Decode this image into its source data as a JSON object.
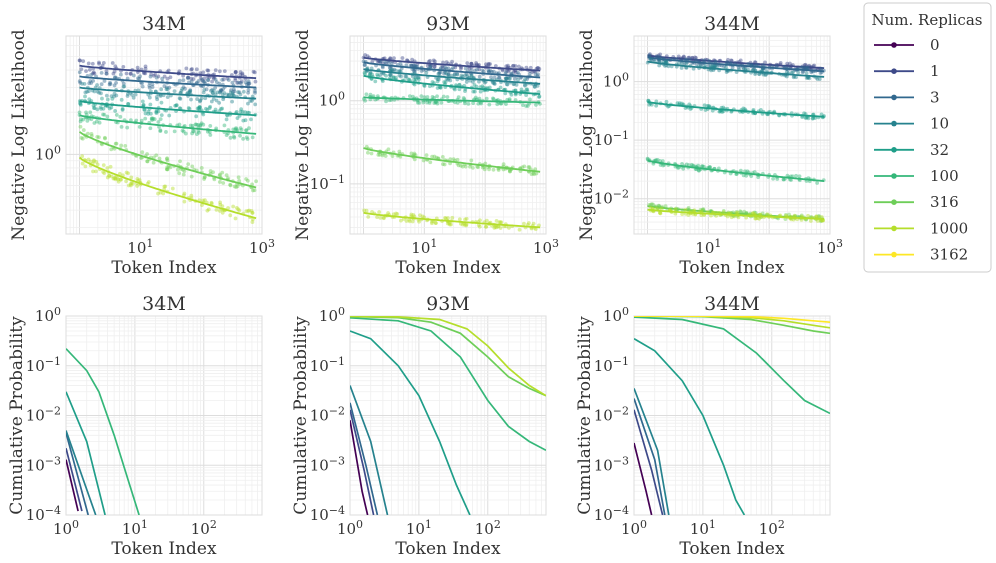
{
  "legend": {
    "title": "Num. Replicas",
    "items": [
      {
        "label": "0",
        "color": "#440154"
      },
      {
        "label": "1",
        "color": "#3e4a89"
      },
      {
        "label": "3",
        "color": "#31688e"
      },
      {
        "label": "10",
        "color": "#26828e"
      },
      {
        "label": "32",
        "color": "#1f9e89"
      },
      {
        "label": "100",
        "color": "#35b779"
      },
      {
        "label": "316",
        "color": "#6ece58"
      },
      {
        "label": "1000",
        "color": "#b5de2b"
      },
      {
        "label": "3162",
        "color": "#fde725"
      }
    ]
  },
  "chart_data": [
    {
      "type": "scatter",
      "title": "34M",
      "xlabel": "Token Index",
      "ylabel": "Negative Log Likelihood",
      "xscale": "log",
      "yscale": "log",
      "xlim": [
        0.6,
        1000
      ],
      "ylim": [
        0.27,
        7
      ],
      "xticks": [
        {
          "v": 10,
          "label": "10^1"
        },
        {
          "v": 1000,
          "label": "10^3"
        }
      ],
      "yticks": [
        {
          "v": 1,
          "label": "10^0"
        }
      ],
      "grid": true,
      "series": [
        {
          "name": "1",
          "color": "#3e4a89",
          "start": 4.3,
          "end": 3.5
        },
        {
          "name": "3",
          "color": "#31688e",
          "start": 3.6,
          "end": 3.0
        },
        {
          "name": "10",
          "color": "#26828e",
          "start": 3.0,
          "end": 2.5
        },
        {
          "name": "32",
          "color": "#1f9e89",
          "start": 2.4,
          "end": 1.9
        },
        {
          "name": "100",
          "color": "#35b779",
          "start": 1.9,
          "end": 1.4
        },
        {
          "name": "316",
          "color": "#6ece58",
          "start": 1.45,
          "end": 0.58
        },
        {
          "name": "1000",
          "color": "#b5de2b",
          "start": 0.95,
          "end": 0.35
        }
      ]
    },
    {
      "type": "scatter",
      "title": "93M",
      "xlabel": "Token Index",
      "ylabel": "Negative Log Likelihood",
      "xscale": "log",
      "yscale": "log",
      "xlim": [
        0.6,
        1000
      ],
      "ylim": [
        0.025,
        6
      ],
      "xticks": [
        {
          "v": 10,
          "label": "10^1"
        },
        {
          "v": 1000,
          "label": "10^3"
        }
      ],
      "yticks": [
        {
          "v": 1,
          "label": "10^0"
        },
        {
          "v": 0.1,
          "label": "10^-1"
        }
      ],
      "grid": true,
      "series": [
        {
          "name": "1",
          "color": "#3e4a89",
          "start": 3.3,
          "end": 2.3
        },
        {
          "name": "3",
          "color": "#31688e",
          "start": 2.9,
          "end": 1.9
        },
        {
          "name": "10",
          "color": "#26828e",
          "start": 2.4,
          "end": 1.6
        },
        {
          "name": "32",
          "color": "#1f9e89",
          "start": 2.0,
          "end": 1.2
        },
        {
          "name": "100",
          "color": "#35b779",
          "start": 1.1,
          "end": 0.95
        },
        {
          "name": "316",
          "color": "#6ece58",
          "start": 0.27,
          "end": 0.14
        },
        {
          "name": "1000",
          "color": "#b5de2b",
          "start": 0.045,
          "end": 0.03
        }
      ]
    },
    {
      "type": "scatter",
      "title": "344M",
      "xlabel": "Token Index",
      "ylabel": "Negative Log Likelihood",
      "xscale": "log",
      "yscale": "log",
      "xlim": [
        0.6,
        1000
      ],
      "ylim": [
        0.0025,
        6
      ],
      "xticks": [
        {
          "v": 10,
          "label": "10^1"
        },
        {
          "v": 1000,
          "label": "10^3"
        }
      ],
      "yticks": [
        {
          "v": 1,
          "label": "10^0"
        },
        {
          "v": 0.1,
          "label": "10^-1"
        },
        {
          "v": 0.01,
          "label": "10^-2"
        }
      ],
      "grid": true,
      "series": [
        {
          "name": "1",
          "color": "#3e4a89",
          "start": 2.8,
          "end": 1.7
        },
        {
          "name": "3",
          "color": "#31688e",
          "start": 2.6,
          "end": 1.5
        },
        {
          "name": "10",
          "color": "#26828e",
          "start": 2.2,
          "end": 1.2
        },
        {
          "name": "32",
          "color": "#1f9e89",
          "start": 0.45,
          "end": 0.25
        },
        {
          "name": "100",
          "color": "#35b779",
          "start": 0.045,
          "end": 0.02
        },
        {
          "name": "316",
          "color": "#6ece58",
          "start": 0.0075,
          "end": 0.0045
        },
        {
          "name": "1000",
          "color": "#b5de2b",
          "start": 0.0065,
          "end": 0.0045
        }
      ]
    },
    {
      "type": "line",
      "title": "34M",
      "xlabel": "Token Index",
      "ylabel": "Cumulative Probability",
      "xscale": "log",
      "yscale": "log",
      "xlim": [
        1,
        700
      ],
      "ylim": [
        0.0001,
        1
      ],
      "xticks": [
        {
          "v": 1,
          "label": "10^0"
        },
        {
          "v": 10,
          "label": "10^1"
        },
        {
          "v": 100,
          "label": "10^2"
        }
      ],
      "yticks": [
        {
          "v": 1,
          "label": "10^0"
        },
        {
          "v": 0.1,
          "label": "10^-1"
        },
        {
          "v": 0.01,
          "label": "10^-2"
        },
        {
          "v": 0.001,
          "label": "10^-3"
        },
        {
          "v": 0.0001,
          "label": "10^-4"
        }
      ],
      "grid": true,
      "series": [
        {
          "name": "0",
          "color": "#440154",
          "points": [
            [
              1,
              0.0013
            ],
            [
              1.5,
              0.00012
            ]
          ]
        },
        {
          "name": "1",
          "color": "#3e4a89",
          "points": [
            [
              1,
              0.0022
            ],
            [
              1.7,
              0.00012
            ]
          ]
        },
        {
          "name": "3",
          "color": "#31688e",
          "points": [
            [
              1,
              0.0045
            ],
            [
              2.1,
              0.0001
            ]
          ]
        },
        {
          "name": "10",
          "color": "#26828e",
          "points": [
            [
              1,
              0.005
            ],
            [
              2.7,
              0.0001
            ]
          ]
        },
        {
          "name": "32",
          "color": "#1f9e89",
          "points": [
            [
              1,
              0.03
            ],
            [
              2,
              0.003
            ],
            [
              3.7,
              0.0001
            ]
          ]
        },
        {
          "name": "100",
          "color": "#35b779",
          "points": [
            [
              1,
              0.22
            ],
            [
              2,
              0.08
            ],
            [
              3,
              0.03
            ],
            [
              5,
              0.004
            ],
            [
              8,
              0.0005
            ],
            [
              11.5,
              0.0001
            ]
          ]
        }
      ]
    },
    {
      "type": "line",
      "title": "93M",
      "xlabel": "Token Index",
      "ylabel": "Cumulative Probability",
      "xscale": "log",
      "yscale": "log",
      "xlim": [
        1,
        700
      ],
      "ylim": [
        0.0001,
        1
      ],
      "xticks": [
        {
          "v": 1,
          "label": "10^0"
        },
        {
          "v": 10,
          "label": "10^1"
        },
        {
          "v": 100,
          "label": "10^2"
        }
      ],
      "yticks": [
        {
          "v": 1,
          "label": "10^0"
        },
        {
          "v": 0.1,
          "label": "10^-1"
        },
        {
          "v": 0.01,
          "label": "10^-2"
        },
        {
          "v": 0.001,
          "label": "10^-3"
        },
        {
          "v": 0.0001,
          "label": "10^-4"
        }
      ],
      "grid": true,
      "series": [
        {
          "name": "0",
          "color": "#440154",
          "points": [
            [
              1,
              0.008
            ],
            [
              1.5,
              0.0003
            ],
            [
              1.8,
              0.0001
            ]
          ]
        },
        {
          "name": "1",
          "color": "#3e4a89",
          "points": [
            [
              1,
              0.013
            ],
            [
              1.6,
              0.0008
            ],
            [
              2.2,
              0.0001
            ]
          ]
        },
        {
          "name": "3",
          "color": "#31688e",
          "points": [
            [
              1,
              0.018
            ],
            [
              1.7,
              0.001
            ],
            [
              2.5,
              0.0001
            ]
          ]
        },
        {
          "name": "10",
          "color": "#26828e",
          "points": [
            [
              1,
              0.04
            ],
            [
              2,
              0.003
            ],
            [
              3.5,
              0.0001
            ]
          ]
        },
        {
          "name": "32",
          "color": "#1f9e89",
          "points": [
            [
              1,
              0.5
            ],
            [
              2,
              0.35
            ],
            [
              5,
              0.1
            ],
            [
              10,
              0.025
            ],
            [
              20,
              0.003
            ],
            [
              35,
              0.0004
            ],
            [
              55,
              0.0001
            ]
          ]
        },
        {
          "name": "100",
          "color": "#35b779",
          "points": [
            [
              1,
              0.92
            ],
            [
              5,
              0.8
            ],
            [
              15,
              0.5
            ],
            [
              40,
              0.15
            ],
            [
              100,
              0.02
            ],
            [
              200,
              0.006
            ],
            [
              400,
              0.003
            ],
            [
              700,
              0.002
            ]
          ]
        },
        {
          "name": "316",
          "color": "#6ece58",
          "points": [
            [
              1,
              0.97
            ],
            [
              5,
              0.93
            ],
            [
              15,
              0.75
            ],
            [
              40,
              0.45
            ],
            [
              100,
              0.15
            ],
            [
              200,
              0.06
            ],
            [
              400,
              0.035
            ],
            [
              700,
              0.025
            ]
          ]
        },
        {
          "name": "1000",
          "color": "#b5de2b",
          "points": [
            [
              1,
              0.98
            ],
            [
              5,
              0.96
            ],
            [
              20,
              0.85
            ],
            [
              50,
              0.55
            ],
            [
              100,
              0.25
            ],
            [
              200,
              0.09
            ],
            [
              400,
              0.04
            ],
            [
              700,
              0.025
            ]
          ]
        }
      ]
    },
    {
      "type": "line",
      "title": "344M",
      "xlabel": "Token Index",
      "ylabel": "Cumulative Probability",
      "xscale": "log",
      "yscale": "log",
      "xlim": [
        1,
        700
      ],
      "ylim": [
        0.0001,
        1
      ],
      "xticks": [
        {
          "v": 1,
          "label": "10^0"
        },
        {
          "v": 10,
          "label": "10^1"
        },
        {
          "v": 100,
          "label": "10^2"
        }
      ],
      "yticks": [
        {
          "v": 1,
          "label": "10^0"
        },
        {
          "v": 0.1,
          "label": "10^-1"
        },
        {
          "v": 0.01,
          "label": "10^-2"
        },
        {
          "v": 0.001,
          "label": "10^-3"
        },
        {
          "v": 0.0001,
          "label": "10^-4"
        }
      ],
      "grid": true,
      "series": [
        {
          "name": "0",
          "color": "#440154",
          "points": [
            [
              1,
              0.0028
            ],
            [
              1.5,
              0.0003
            ],
            [
              1.8,
              0.0001
            ]
          ]
        },
        {
          "name": "1",
          "color": "#3e4a89",
          "points": [
            [
              1,
              0.013
            ],
            [
              1.8,
              0.0008
            ],
            [
              2.6,
              0.0001
            ]
          ]
        },
        {
          "name": "3",
          "color": "#31688e",
          "points": [
            [
              1,
              0.022
            ],
            [
              2,
              0.0013
            ],
            [
              2.8,
              0.0001
            ]
          ]
        },
        {
          "name": "10",
          "color": "#26828e",
          "points": [
            [
              1,
              0.035
            ],
            [
              2.2,
              0.002
            ],
            [
              3.2,
              0.0001
            ]
          ]
        },
        {
          "name": "32",
          "color": "#1f9e89",
          "points": [
            [
              1,
              0.35
            ],
            [
              2,
              0.2
            ],
            [
              5,
              0.05
            ],
            [
              10,
              0.01
            ],
            [
              20,
              0.001
            ],
            [
              30,
              0.0002
            ],
            [
              40,
              0.0001
            ]
          ]
        },
        {
          "name": "100",
          "color": "#35b779",
          "points": [
            [
              1,
              0.95
            ],
            [
              5,
              0.85
            ],
            [
              20,
              0.55
            ],
            [
              60,
              0.18
            ],
            [
              150,
              0.05
            ],
            [
              300,
              0.02
            ],
            [
              700,
              0.011
            ]
          ]
        },
        {
          "name": "316",
          "color": "#6ece58",
          "points": [
            [
              1,
              0.99
            ],
            [
              10,
              0.97
            ],
            [
              50,
              0.85
            ],
            [
              150,
              0.65
            ],
            [
              400,
              0.5
            ],
            [
              700,
              0.45
            ]
          ]
        },
        {
          "name": "1000",
          "color": "#b5de2b",
          "points": [
            [
              1,
              0.995
            ],
            [
              10,
              0.99
            ],
            [
              50,
              0.93
            ],
            [
              150,
              0.8
            ],
            [
              400,
              0.65
            ],
            [
              700,
              0.58
            ]
          ]
        },
        {
          "name": "3162",
          "color": "#fde725",
          "points": [
            [
              1,
              1.0
            ],
            [
              10,
              0.995
            ],
            [
              50,
              0.97
            ],
            [
              150,
              0.9
            ],
            [
              400,
              0.8
            ],
            [
              700,
              0.75
            ]
          ]
        }
      ]
    }
  ]
}
